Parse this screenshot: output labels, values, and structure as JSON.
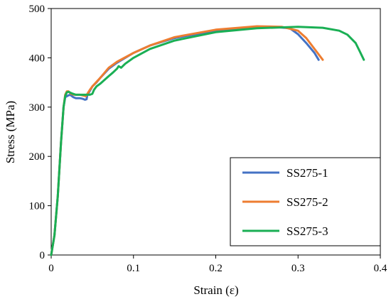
{
  "chart_data": {
    "type": "line",
    "xlabel": "Strain (ε)",
    "ylabel": "Stress (MPa)",
    "xlim": [
      0,
      0.4
    ],
    "ylim": [
      0,
      500
    ],
    "x_ticks": [
      "0",
      "0.1",
      "0.2",
      "0.3",
      "0.4"
    ],
    "y_ticks": [
      "0",
      "100",
      "200",
      "300",
      "400",
      "500"
    ],
    "grid": false,
    "legend_position": "bottom-right",
    "series": [
      {
        "name": "SS275-1",
        "color": "#4472C4",
        "points": [
          [
            0,
            0
          ],
          [
            0.004,
            40
          ],
          [
            0.008,
            120
          ],
          [
            0.012,
            230
          ],
          [
            0.015,
            300
          ],
          [
            0.017,
            320
          ],
          [
            0.02,
            323
          ],
          [
            0.023,
            325
          ],
          [
            0.027,
            320
          ],
          [
            0.03,
            318
          ],
          [
            0.035,
            318
          ],
          [
            0.038,
            317
          ],
          [
            0.041,
            315
          ],
          [
            0.043,
            316
          ],
          [
            0.044,
            325
          ],
          [
            0.046,
            330
          ],
          [
            0.05,
            342
          ],
          [
            0.055,
            350
          ],
          [
            0.06,
            360
          ],
          [
            0.07,
            378
          ],
          [
            0.08,
            390
          ],
          [
            0.1,
            410
          ],
          [
            0.12,
            425
          ],
          [
            0.15,
            440
          ],
          [
            0.2,
            455
          ],
          [
            0.25,
            462
          ],
          [
            0.27,
            463
          ],
          [
            0.29,
            460
          ],
          [
            0.3,
            448
          ],
          [
            0.31,
            430
          ],
          [
            0.32,
            410
          ],
          [
            0.325,
            396
          ]
        ]
      },
      {
        "name": "SS275-2",
        "color": "#ED7D31",
        "points": [
          [
            0,
            0
          ],
          [
            0.004,
            40
          ],
          [
            0.008,
            120
          ],
          [
            0.012,
            230
          ],
          [
            0.015,
            300
          ],
          [
            0.017,
            325
          ],
          [
            0.019,
            332
          ],
          [
            0.021,
            332
          ],
          [
            0.024,
            327
          ],
          [
            0.028,
            325
          ],
          [
            0.035,
            325
          ],
          [
            0.04,
            323
          ],
          [
            0.042,
            322
          ],
          [
            0.044,
            327
          ],
          [
            0.047,
            335
          ],
          [
            0.05,
            342
          ],
          [
            0.06,
            360
          ],
          [
            0.07,
            380
          ],
          [
            0.08,
            392
          ],
          [
            0.1,
            410
          ],
          [
            0.12,
            425
          ],
          [
            0.15,
            442
          ],
          [
            0.2,
            457
          ],
          [
            0.25,
            464
          ],
          [
            0.28,
            463
          ],
          [
            0.3,
            455
          ],
          [
            0.31,
            440
          ],
          [
            0.32,
            418
          ],
          [
            0.33,
            396
          ]
        ]
      },
      {
        "name": "SS275-3",
        "color": "#1AAF54",
        "points": [
          [
            0,
            0
          ],
          [
            0.004,
            40
          ],
          [
            0.008,
            120
          ],
          [
            0.012,
            230
          ],
          [
            0.015,
            300
          ],
          [
            0.017,
            322
          ],
          [
            0.019,
            330
          ],
          [
            0.021,
            331
          ],
          [
            0.025,
            328
          ],
          [
            0.03,
            325
          ],
          [
            0.04,
            325
          ],
          [
            0.047,
            325
          ],
          [
            0.05,
            327
          ],
          [
            0.052,
            335
          ],
          [
            0.055,
            342
          ],
          [
            0.06,
            348
          ],
          [
            0.07,
            363
          ],
          [
            0.075,
            370
          ],
          [
            0.08,
            378
          ],
          [
            0.082,
            383
          ],
          [
            0.085,
            380
          ],
          [
            0.09,
            388
          ],
          [
            0.1,
            400
          ],
          [
            0.12,
            418
          ],
          [
            0.15,
            435
          ],
          [
            0.2,
            452
          ],
          [
            0.25,
            460
          ],
          [
            0.3,
            463
          ],
          [
            0.33,
            461
          ],
          [
            0.35,
            455
          ],
          [
            0.36,
            447
          ],
          [
            0.37,
            430
          ],
          [
            0.375,
            413
          ],
          [
            0.38,
            396
          ]
        ]
      }
    ]
  }
}
